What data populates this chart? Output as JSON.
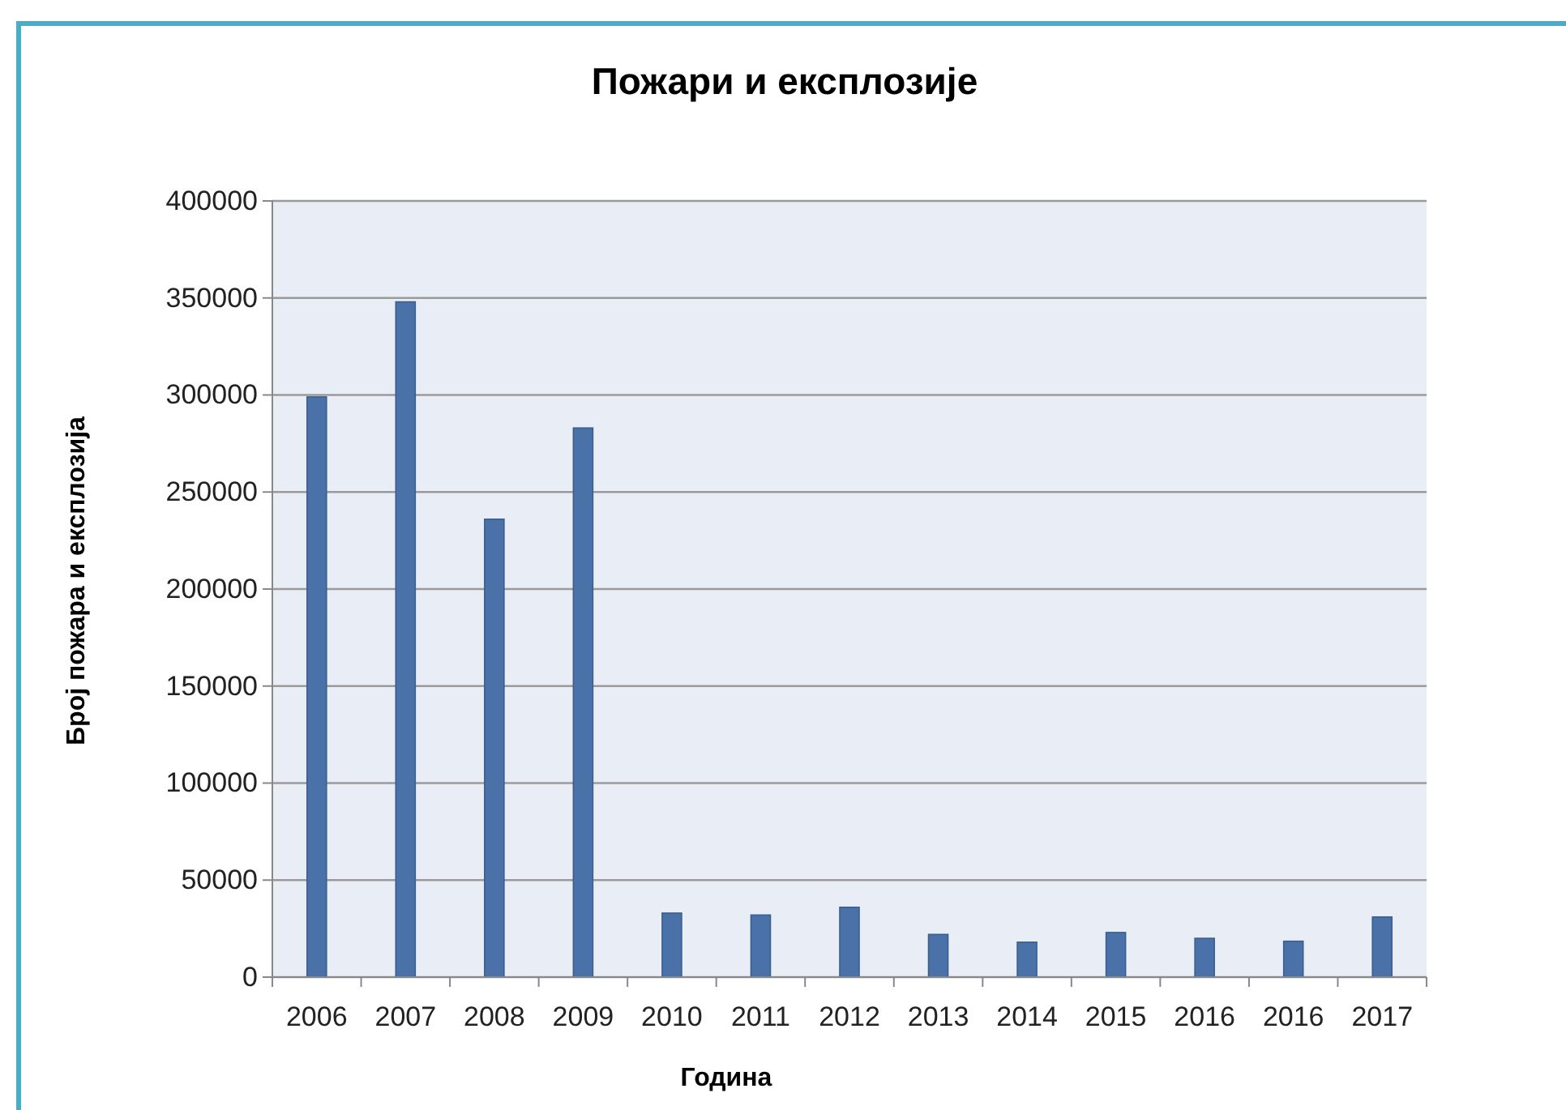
{
  "chart_data": {
    "type": "bar",
    "title": "Пожари и експлозије",
    "xlabel": "Година",
    "ylabel": "Број пожара и експлозија",
    "categories": [
      "2006",
      "2007",
      "2008",
      "2009",
      "2010",
      "2011",
      "2012",
      "2013",
      "2014",
      "2015",
      "2016",
      "2016",
      "2017"
    ],
    "values": [
      299000,
      348000,
      236000,
      283000,
      33000,
      32000,
      36000,
      22000,
      18000,
      23000,
      20000,
      18500,
      31000
    ],
    "color": "#4a72a8",
    "ylim": [
      0,
      400000
    ],
    "yticks": [
      0,
      50000,
      100000,
      150000,
      200000,
      250000,
      300000,
      350000,
      400000
    ],
    "grid": "y"
  }
}
